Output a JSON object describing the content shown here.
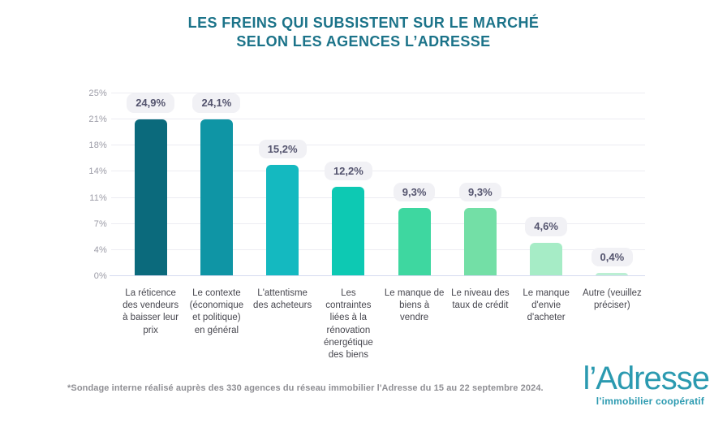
{
  "title": {
    "line1": "LES FREINS QUI SUBSISTENT SUR LE MARCHÉ",
    "line2": "SELON LES AGENCES L’ADRESSE"
  },
  "chart_data": {
    "type": "bar",
    "title": "Les freins qui subsistent sur le marché selon les agences l'Adresse",
    "categories": [
      "La réticence des vendeurs à baisser leur prix",
      "Le contexte (économique et politique) en général",
      "L'attentisme des acheteurs",
      "Les contraintes liées à la rénovation énergétique des biens",
      "Le manque de biens à vendre",
      "Le niveau des taux de crédit",
      "Le manque d'envie d'acheter",
      "Autre (veuillez préciser)"
    ],
    "values": [
      24.9,
      24.1,
      15.2,
      12.2,
      9.3,
      9.3,
      4.6,
      0.4
    ],
    "value_labels": [
      "24,9%",
      "24,1%",
      "15,2%",
      "12,2%",
      "9,3%",
      "9,3%",
      "4,6%",
      "0,4%"
    ],
    "bar_colors": [
      "#0b6a7c",
      "#0f95a5",
      "#14b9c0",
      "#0dc9b3",
      "#3ed7a0",
      "#73dfa6",
      "#a6ecc6",
      "#bbefd3"
    ],
    "y_ticks": [
      "0%",
      "4%",
      "7%",
      "11%",
      "14%",
      "18%",
      "21%",
      "25%"
    ],
    "ylim": [
      0,
      25
    ],
    "xlabel": "",
    "ylabel": "",
    "grid": true,
    "legend": "none"
  },
  "footnote": "*Sondage interne réalisé auprès des 330 agences du réseau immobilier l'Adresse du 15 au 22 septembre 2024.",
  "logo": {
    "name": "l’Adresse",
    "tagline": "l’immobilier coopératif"
  },
  "colors": {
    "title": "#1b7389",
    "badge_bg": "#f1f1f5",
    "badge_text": "#54546e",
    "gridline": "#ececf2",
    "baseline": "#d6dbf0",
    "tick_label": "#9b9ba6",
    "category_label": "#47474f",
    "footnote": "#8f8f94",
    "logo": "#2b9ab0"
  }
}
